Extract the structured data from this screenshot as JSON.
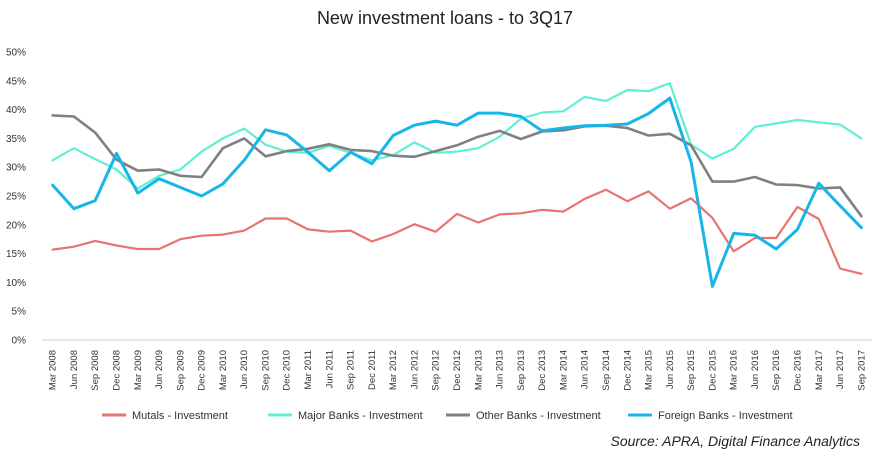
{
  "chart_data": {
    "type": "line",
    "title": "New investment loans  - to 3Q17",
    "source": "Source: APRA, Digital Finance Analytics",
    "ylim": [
      0,
      50
    ],
    "yticks": [
      "0%",
      "5%",
      "10%",
      "15%",
      "20%",
      "25%",
      "30%",
      "35%",
      "40%",
      "45%",
      "50%"
    ],
    "ytick_values": [
      0,
      5,
      10,
      15,
      20,
      25,
      30,
      35,
      40,
      45,
      50
    ],
    "grid": false,
    "legend_position": "bottom",
    "x": [
      "Mar 2008",
      "Jun 2008",
      "Sep 2008",
      "Dec 2008",
      "Mar 2009",
      "Jun 2009",
      "Sep 2009",
      "Dec 2009",
      "Mar 2010",
      "Jun 2010",
      "Sep 2010",
      "Dec 2010",
      "Mar 2011",
      "Jun 2011",
      "Sep 2011",
      "Dec 2011",
      "Mar 2012",
      "Jun 2012",
      "Sep 2012",
      "Dec 2012",
      "Mar 2013",
      "Jun 2013",
      "Sep 2013",
      "Dec 2013",
      "Mar 2014",
      "Jun 2014",
      "Sep 2014",
      "Dec 2014",
      "Mar 2015",
      "Jun 2015",
      "Sep 2015",
      "Dec 2015",
      "Mar 2016",
      "Jun 2016",
      "Sep 2016",
      "Dec 2016",
      "Mar 2017",
      "Jun 2017",
      "Sep 2017"
    ],
    "series": [
      {
        "name": "Mutals - Investment",
        "color": "#e8736f",
        "values": [
          15.7,
          16.2,
          17.2,
          16.4,
          15.8,
          15.8,
          17.5,
          18.1,
          18.3,
          19,
          21.1,
          21.1,
          19.2,
          18.8,
          19,
          17.1,
          18.4,
          20.1,
          18.8,
          21.9,
          20.4,
          21.8,
          22,
          22.6,
          22.3,
          24.5,
          26.1,
          24.1,
          25.8,
          22.8,
          24.6,
          21.2,
          15.4,
          17.7,
          17.7,
          23.1,
          21,
          12.4,
          11.5
        ],
        "width": 2.2
      },
      {
        "name": "Major Banks - Investment",
        "color": "#5ff0d4",
        "values": [
          31.2,
          33.3,
          31.4,
          29.6,
          26.3,
          28.5,
          29.6,
          32.7,
          35,
          36.7,
          33.9,
          32.7,
          32.5,
          33.7,
          32.5,
          31.2,
          32.1,
          34.3,
          32.5,
          32.7,
          33.3,
          35.3,
          38.4,
          39.5,
          39.7,
          42.2,
          41.5,
          43.4,
          43.2,
          44.6,
          33.9,
          31.5,
          33.2,
          37,
          37.6,
          38.2,
          37.8,
          37.4,
          35
        ],
        "width": 2.2
      },
      {
        "name": "Other Banks - Investment",
        "color": "#808080",
        "values": [
          39,
          38.8,
          36,
          31.3,
          29.4,
          29.6,
          28.5,
          28.3,
          33.3,
          35,
          31.9,
          32.8,
          33.2,
          34,
          33,
          32.8,
          32,
          31.8,
          32.8,
          33.8,
          35.3,
          36.3,
          34.9,
          36.2,
          36.4,
          37.1,
          37.2,
          36.8,
          35.5,
          35.8,
          33.8,
          27.5,
          27.5,
          28.3,
          27,
          26.9,
          26.3,
          26.5,
          21.5
        ],
        "width": 2.6
      },
      {
        "name": "Foreign Banks - Investment",
        "color": "#18b5e8",
        "values": [
          26.9,
          22.8,
          24.2,
          32.4,
          25.5,
          28,
          26.5,
          25,
          27.1,
          31.2,
          36.5,
          35.6,
          32.6,
          29.4,
          32.6,
          30.6,
          35.5,
          37.3,
          38,
          37.3,
          39.4,
          39.4,
          38.8,
          36.3,
          36.8,
          37.2,
          37.3,
          37.5,
          39.3,
          42,
          30.9,
          9.3,
          18.5,
          18.2,
          15.8,
          19.2,
          27.2,
          23.3,
          19.5
        ],
        "width": 3
      }
    ]
  }
}
